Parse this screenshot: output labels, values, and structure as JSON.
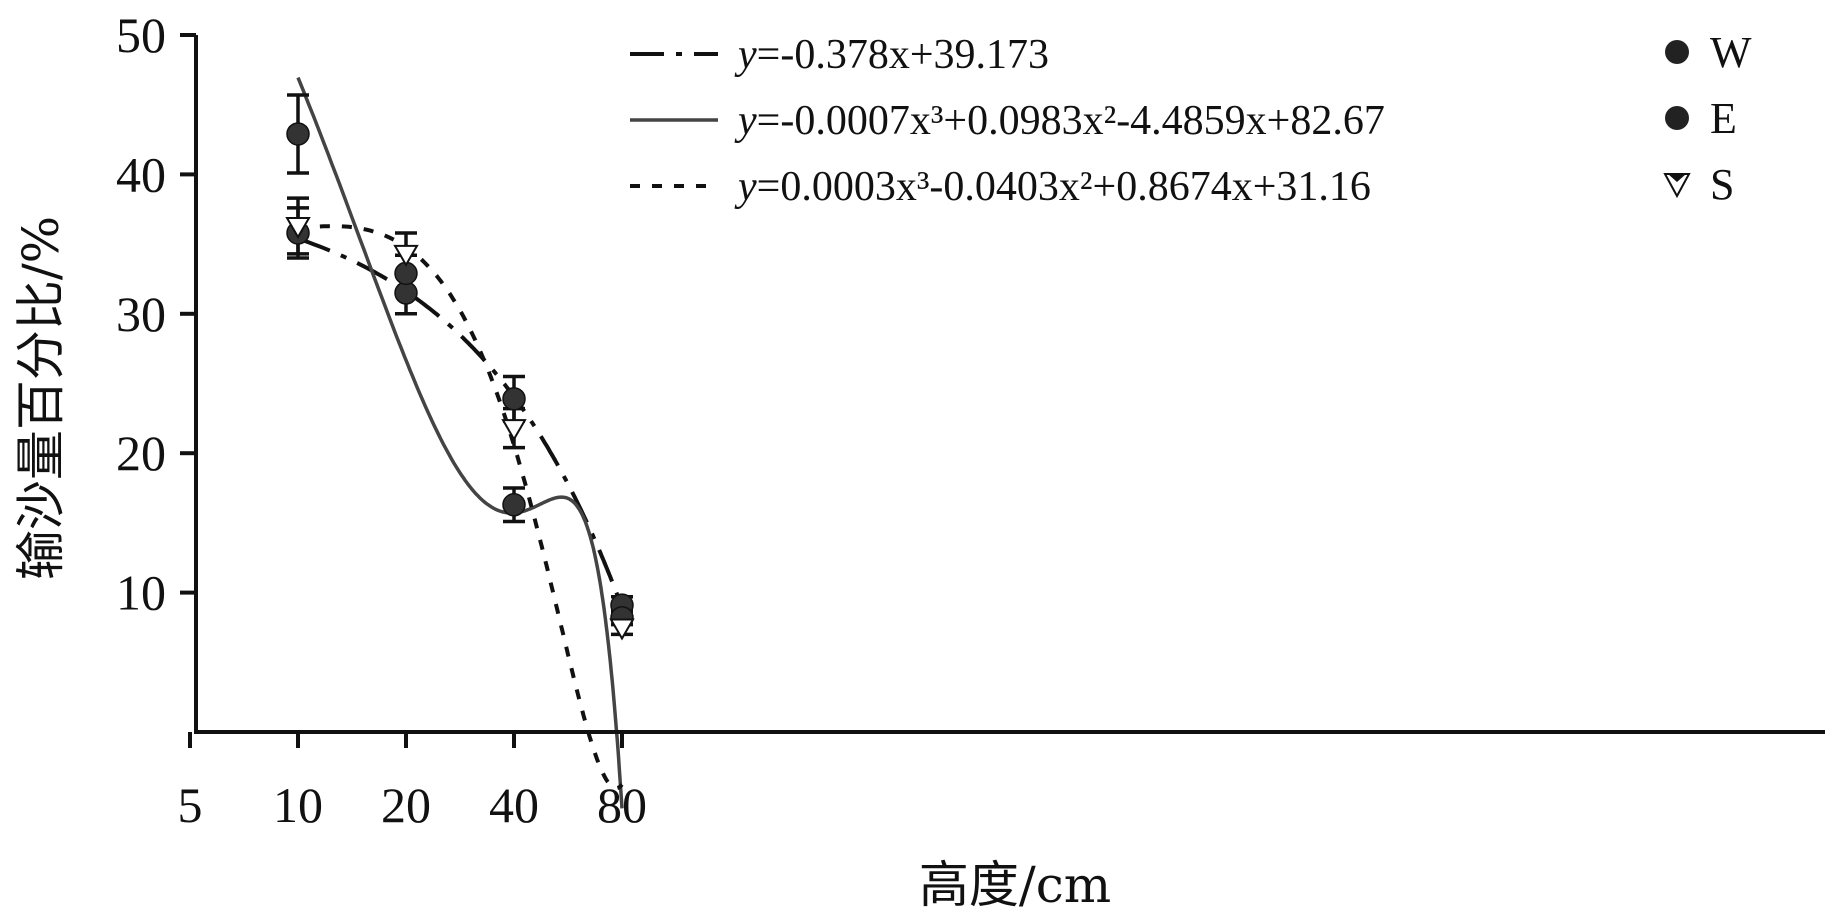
{
  "chart_data": {
    "type": "scatter",
    "xlabel": "高度/cm",
    "ylabel": "输沙量百分比/%",
    "x_scale": "log",
    "xlim": [
      5,
      100
    ],
    "ylim": [
      0,
      50
    ],
    "x_ticks": [
      5,
      10,
      20,
      40,
      80
    ],
    "y_ticks": [
      10,
      20,
      30,
      40,
      50
    ],
    "grid": false,
    "legend_placement": "top",
    "x": [
      10,
      20,
      40,
      80
    ],
    "series": [
      {
        "name": "W",
        "marker": "filled-circle",
        "values": [
          35.8,
          31.5,
          23.9,
          9.1
        ],
        "error": [
          1.8,
          1.5,
          1.6,
          0.6
        ]
      },
      {
        "name": "E",
        "marker": "filled-circle",
        "values": [
          42.9,
          32.9,
          16.3,
          8.2
        ],
        "error": [
          2.8,
          1.3,
          1.2,
          0.5
        ]
      },
      {
        "name": "S",
        "marker": "open-triangle-down",
        "values": [
          36.3,
          34.3,
          21.8,
          7.5
        ],
        "error": [
          2.0,
          1.5,
          1.4,
          0.5
        ]
      }
    ],
    "fits": [
      {
        "label_y": "y",
        "label_rest": "=-0.378x+39.173",
        "style": "dash-dot",
        "coeffs": [
          39.173,
          -0.378,
          0,
          0
        ]
      },
      {
        "label_y": "y",
        "label_rest": "=-0.0007x³+0.0983x²-4.4859x+82.67",
        "style": "solid",
        "coeffs": [
          82.67,
          -4.4859,
          0.0983,
          -0.0007
        ]
      },
      {
        "label_y": "y",
        "label_rest": "=0.0003x³-0.0403x²+0.8674x+31.16",
        "style": "dotted",
        "coeffs": [
          31.16,
          0.8674,
          -0.0403,
          0.0003
        ]
      }
    ]
  }
}
